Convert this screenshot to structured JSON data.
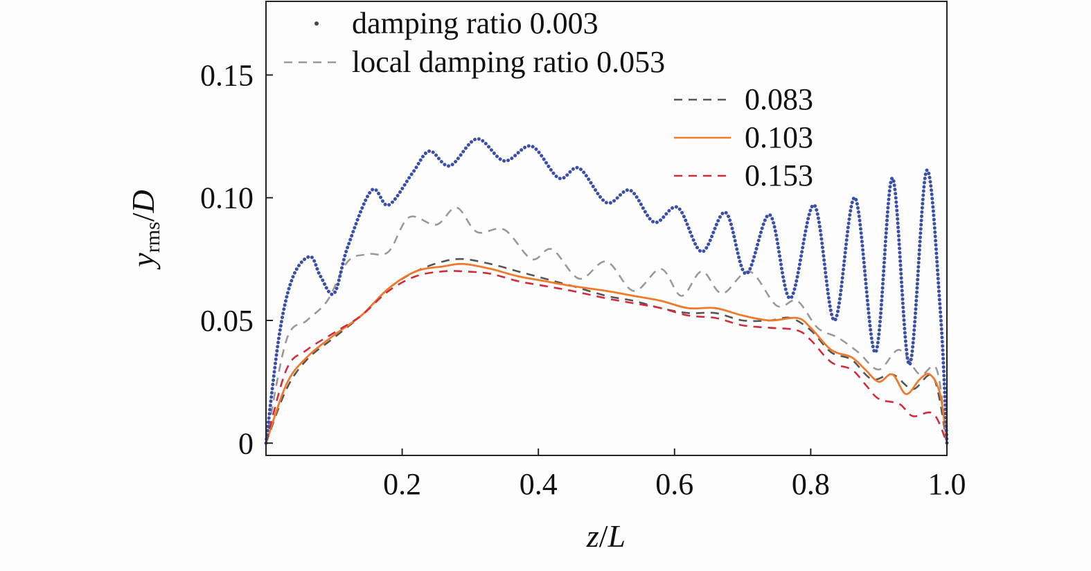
{
  "chart_data": {
    "type": "line",
    "xlabel": "z/L",
    "ylabel": "y_rms/D",
    "ylabel_parts": {
      "var": "y",
      "sub": "rms",
      "slash": "/",
      "denom": "D"
    },
    "xlabel_parts": {
      "var": "z",
      "slash": "/",
      "denom": "L"
    },
    "xlim": [
      0.0,
      1.0
    ],
    "ylim": [
      -0.005,
      0.18
    ],
    "x_ticks": [
      0.2,
      0.4,
      0.6,
      0.8,
      1.0
    ],
    "x_tick_labels": [
      "0.2",
      "0.4",
      "0.6",
      "0.8",
      "1.0"
    ],
    "y_ticks": [
      0,
      0.05,
      0.1,
      0.15
    ],
    "y_tick_labels": [
      "0",
      "0.05",
      "0.10",
      "0.15"
    ],
    "grid": false,
    "legend_position": "top-right",
    "series": [
      {
        "name": "damping ratio 0.003",
        "style": "dotted-markers",
        "color": "#3a4fa8",
        "x": [
          0,
          0.02,
          0.04,
          0.065,
          0.08,
          0.1,
          0.12,
          0.155,
          0.18,
          0.215,
          0.24,
          0.27,
          0.31,
          0.35,
          0.39,
          0.43,
          0.46,
          0.5,
          0.535,
          0.57,
          0.605,
          0.64,
          0.675,
          0.705,
          0.74,
          0.77,
          0.805,
          0.835,
          0.865,
          0.895,
          0.92,
          0.945,
          0.97,
          0.99,
          1.0
        ],
        "y": [
          0,
          0.045,
          0.068,
          0.076,
          0.068,
          0.061,
          0.08,
          0.103,
          0.097,
          0.11,
          0.119,
          0.113,
          0.124,
          0.115,
          0.121,
          0.108,
          0.112,
          0.098,
          0.103,
          0.09,
          0.096,
          0.078,
          0.094,
          0.069,
          0.093,
          0.059,
          0.097,
          0.05,
          0.1,
          0.037,
          0.108,
          0.032,
          0.111,
          0.055,
          0.0
        ]
      },
      {
        "name": "local damping ratio 0.053",
        "style": "dashed",
        "color": "#999999",
        "x": [
          0,
          0.03,
          0.06,
          0.09,
          0.12,
          0.15,
          0.18,
          0.21,
          0.25,
          0.28,
          0.31,
          0.35,
          0.39,
          0.42,
          0.46,
          0.5,
          0.54,
          0.58,
          0.61,
          0.64,
          0.67,
          0.71,
          0.75,
          0.78,
          0.81,
          0.84,
          0.87,
          0.9,
          0.93,
          0.96,
          0.985,
          1.0
        ],
        "y": [
          0,
          0.042,
          0.05,
          0.058,
          0.074,
          0.077,
          0.078,
          0.092,
          0.089,
          0.096,
          0.086,
          0.087,
          0.075,
          0.079,
          0.067,
          0.074,
          0.062,
          0.071,
          0.06,
          0.07,
          0.061,
          0.07,
          0.056,
          0.058,
          0.047,
          0.043,
          0.037,
          0.03,
          0.038,
          0.028,
          0.03,
          0.0
        ]
      },
      {
        "name": "0.083",
        "style": "dashed",
        "color": "#555555",
        "x": [
          0,
          0.03,
          0.06,
          0.1,
          0.14,
          0.18,
          0.22,
          0.26,
          0.29,
          0.33,
          0.37,
          0.41,
          0.45,
          0.5,
          0.54,
          0.58,
          0.62,
          0.66,
          0.7,
          0.74,
          0.77,
          0.8,
          0.83,
          0.86,
          0.89,
          0.92,
          0.95,
          0.98,
          1.0
        ],
        "y": [
          0,
          0.022,
          0.034,
          0.043,
          0.052,
          0.063,
          0.07,
          0.074,
          0.075,
          0.073,
          0.07,
          0.067,
          0.064,
          0.06,
          0.058,
          0.055,
          0.053,
          0.053,
          0.05,
          0.05,
          0.051,
          0.046,
          0.037,
          0.034,
          0.026,
          0.028,
          0.022,
          0.027,
          0.0
        ]
      },
      {
        "name": "0.103",
        "style": "solid",
        "color": "#f07a2c",
        "x": [
          0,
          0.03,
          0.06,
          0.1,
          0.14,
          0.18,
          0.22,
          0.26,
          0.29,
          0.33,
          0.37,
          0.41,
          0.45,
          0.5,
          0.54,
          0.58,
          0.62,
          0.66,
          0.7,
          0.74,
          0.78,
          0.8,
          0.83,
          0.86,
          0.88,
          0.9,
          0.92,
          0.94,
          0.96,
          0.975,
          0.99,
          1.0
        ],
        "y": [
          0,
          0.024,
          0.035,
          0.044,
          0.052,
          0.063,
          0.07,
          0.072,
          0.073,
          0.071,
          0.068,
          0.066,
          0.064,
          0.062,
          0.06,
          0.058,
          0.055,
          0.055,
          0.052,
          0.05,
          0.051,
          0.047,
          0.038,
          0.035,
          0.03,
          0.025,
          0.028,
          0.02,
          0.026,
          0.028,
          0.02,
          0.0
        ]
      },
      {
        "name": "0.153",
        "style": "dashed",
        "color": "#d42b3a",
        "x": [
          0,
          0.03,
          0.06,
          0.1,
          0.14,
          0.18,
          0.22,
          0.26,
          0.29,
          0.33,
          0.37,
          0.41,
          0.45,
          0.5,
          0.54,
          0.58,
          0.62,
          0.66,
          0.7,
          0.74,
          0.78,
          0.8,
          0.83,
          0.86,
          0.88,
          0.9,
          0.93,
          0.95,
          0.98,
          1.0
        ],
        "y": [
          0,
          0.03,
          0.038,
          0.045,
          0.052,
          0.062,
          0.068,
          0.07,
          0.07,
          0.069,
          0.066,
          0.064,
          0.062,
          0.059,
          0.057,
          0.055,
          0.052,
          0.051,
          0.048,
          0.047,
          0.046,
          0.042,
          0.033,
          0.03,
          0.024,
          0.018,
          0.016,
          0.011,
          0.012,
          0.0
        ]
      }
    ]
  },
  "colors": {
    "axis": "#222222",
    "background": "#fdfdfd",
    "legend_marker": "#444444"
  }
}
